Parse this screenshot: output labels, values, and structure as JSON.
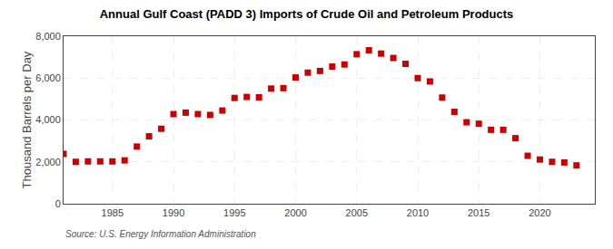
{
  "chart_data": {
    "type": "scatter",
    "title": "Annual Gulf Coast (PADD 3) Imports of Crude Oil and Petroleum Products",
    "ylabel": "Thousand Barrels per Day",
    "annotations": [
      "Source: U.S. Energy Information Administration"
    ],
    "x": [
      1981,
      1982,
      1983,
      1984,
      1985,
      1986,
      1987,
      1988,
      1989,
      1990,
      1991,
      1992,
      1993,
      1994,
      1995,
      1996,
      1997,
      1998,
      1999,
      2000,
      2001,
      2002,
      2003,
      2004,
      2005,
      2006,
      2007,
      2008,
      2009,
      2010,
      2011,
      2012,
      2013,
      2014,
      2015,
      2016,
      2017,
      2018,
      2019,
      2020,
      2021,
      2022,
      2023
    ],
    "values": [
      2380,
      2000,
      2020,
      2020,
      2020,
      2070,
      2730,
      3220,
      3580,
      4280,
      4350,
      4280,
      4240,
      4450,
      5050,
      5100,
      5080,
      5500,
      5520,
      6030,
      6260,
      6340,
      6550,
      6650,
      7140,
      7330,
      7170,
      6960,
      6680,
      6000,
      5840,
      5070,
      4390,
      3890,
      3820,
      3530,
      3530,
      3130,
      2290,
      2110,
      2000,
      1970,
      1830
    ],
    "color": "#cc0000",
    "marker": "square",
    "xlim": [
      1981.0,
      2024.5
    ],
    "xticks": [
      1985,
      1990,
      1995,
      2000,
      2005,
      2010,
      2015,
      2020
    ],
    "ylim": [
      0,
      8000
    ],
    "yticks": [
      0,
      {
        "value": 2000,
        "label": "2,000"
      },
      {
        "value": 4000,
        "label": "4,000"
      },
      {
        "value": 6000,
        "label": "6,000"
      },
      {
        "value": 8000,
        "label": "8,000"
      }
    ],
    "grid": true
  }
}
